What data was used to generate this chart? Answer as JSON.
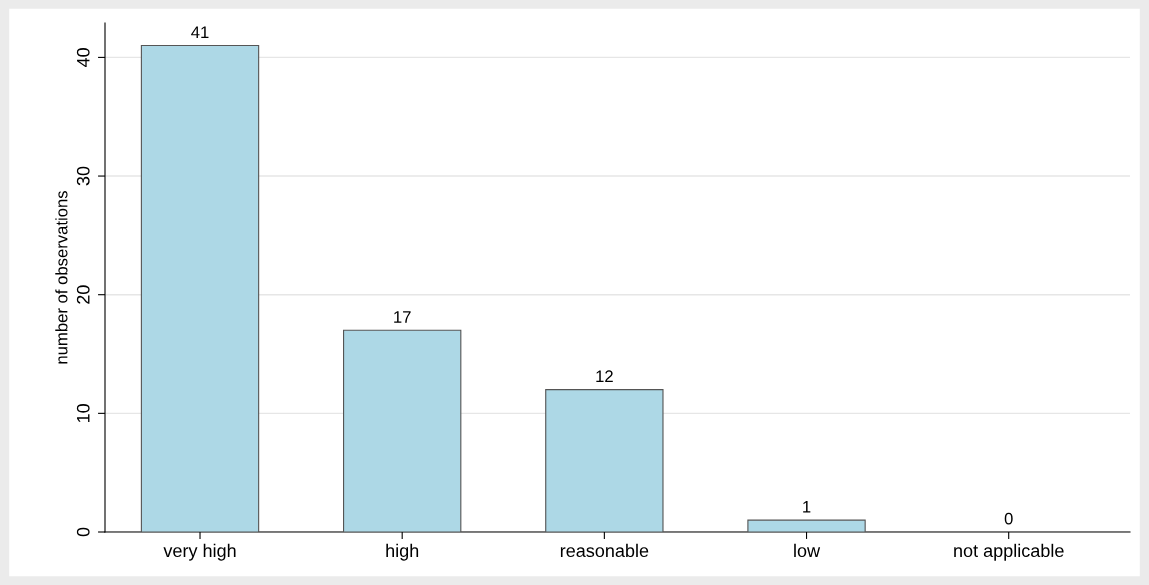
{
  "chart_data": {
    "type": "bar",
    "ylabel": "number of observations",
    "categories": [
      "very high",
      "high",
      "reasonable",
      "low",
      "not applicable"
    ],
    "values": [
      41,
      17,
      12,
      1,
      0
    ],
    "color": "#add8e6",
    "ylim": [
      0,
      42.9
    ],
    "yticks": [
      0,
      10,
      20,
      30,
      40
    ],
    "grid": "y",
    "data_labels": true
  }
}
